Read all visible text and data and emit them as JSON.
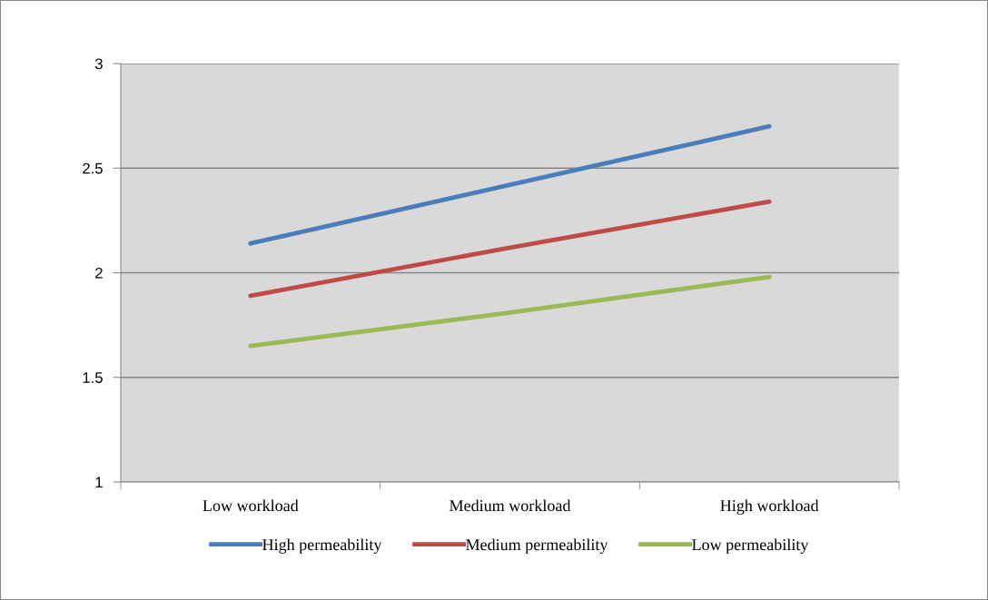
{
  "chart_data": {
    "type": "line",
    "categories": [
      "Low workload",
      "Medium workload",
      "High workload"
    ],
    "series": [
      {
        "name": "High permeability",
        "color": "#4a7ebb",
        "values": [
          2.14,
          2.42,
          2.7
        ]
      },
      {
        "name": "Medium permeability",
        "color": "#be4b48",
        "values": [
          1.89,
          2.12,
          2.34
        ]
      },
      {
        "name": "Low permeability",
        "color": "#98b954",
        "values": [
          1.65,
          1.81,
          1.98
        ]
      }
    ],
    "ylim": [
      1,
      3
    ],
    "yticks": [
      1,
      1.5,
      2,
      2.5,
      3
    ],
    "grid": "y",
    "legend": "bottom",
    "marker": "none",
    "line_style": "solid"
  }
}
